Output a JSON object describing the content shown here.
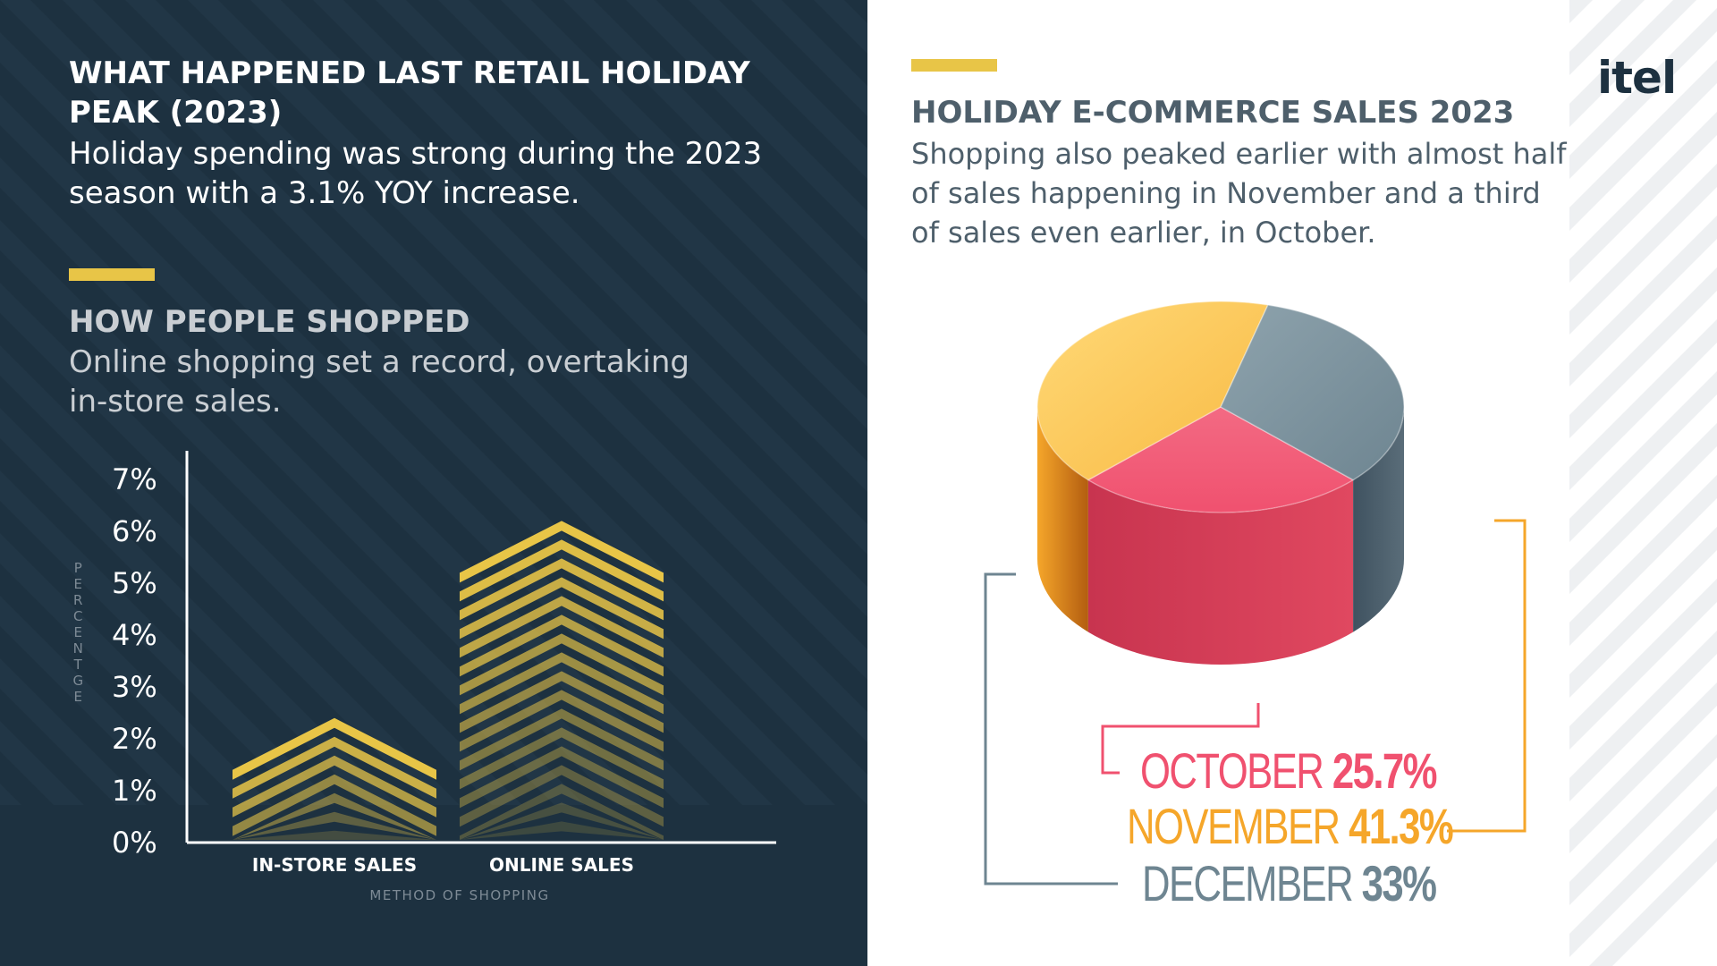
{
  "left": {
    "title": "WHAT HAPPENED LAST RETAIL HOLIDAY PEAK (2023)",
    "subtitle": "Holiday spending was strong during the 2023 season with a 3.1% YOY increase.",
    "section_title": "HOW PEOPLE SHOPPED",
    "section_subtitle": "Online shopping set a record, overtaking in-store sales."
  },
  "right": {
    "logo": "itel",
    "title": "HOLIDAY E-COMMERCE SALES 2023",
    "subtitle": "Shopping also peaked earlier with almost half of sales happening in November and a third of sales even earlier, in October."
  },
  "chart_data": [
    {
      "type": "bar",
      "categories": [
        "IN-STORE SALES",
        "ONLINE SALES"
      ],
      "values": [
        2.4,
        6.2
      ],
      "xlabel": "METHOD OF SHOPPING",
      "ylabel": "PERCENTGE",
      "ylim": [
        0,
        7
      ],
      "ticks": [
        "0%",
        "1%",
        "2%",
        "3%",
        "4%",
        "5%",
        "6%",
        "7%"
      ],
      "grid": false,
      "colors": [
        "#e8c547"
      ]
    },
    {
      "type": "pie",
      "categories": [
        "OCTOBER",
        "NOVEMBER",
        "DECEMBER"
      ],
      "values": [
        25.7,
        41.3,
        33
      ],
      "labels": [
        "25.7%",
        "41.3%",
        "33%"
      ],
      "colors": [
        "#f0516f",
        "#f5a62a",
        "#6e8591"
      ]
    }
  ],
  "colors": {
    "dark_bg": "#1d3140",
    "accent": "#e8c547",
    "october": "#f0516f",
    "november": "#f5a62a",
    "december": "#6e8591"
  }
}
